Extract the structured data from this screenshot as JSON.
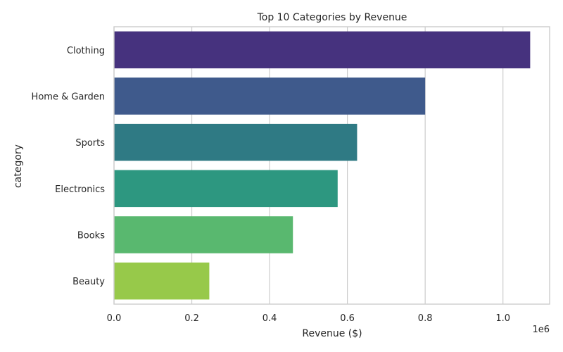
{
  "chart_data": {
    "type": "bar",
    "orientation": "horizontal",
    "title": "Top 10 Categories by Revenue",
    "xlabel": "Revenue ($)",
    "ylabel": "category",
    "x_offset_text": "1e6",
    "categories": [
      "Clothing",
      "Home & Garden",
      "Sports",
      "Electronics",
      "Books",
      "Beauty"
    ],
    "values": [
      1.07,
      0.8,
      0.625,
      0.575,
      0.46,
      0.245
    ],
    "colors": [
      "#46327e",
      "#3f5a8c",
      "#2f7a84",
      "#2d9780",
      "#59b86f",
      "#97c94a"
    ],
    "xlim": [
      0,
      1.12
    ],
    "x_ticks": [
      0.0,
      0.2,
      0.4,
      0.6,
      0.8,
      1.0
    ],
    "x_tick_labels": [
      "0.0",
      "0.2",
      "0.4",
      "0.6",
      "0.8",
      "1.0"
    ],
    "grid": true,
    "grid_color": "#cccccc",
    "background": "#ffffff"
  }
}
